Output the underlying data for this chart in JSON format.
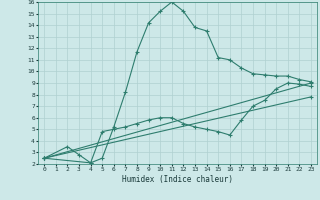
{
  "xlabel": "Humidex (Indice chaleur)",
  "xlim": [
    -0.5,
    23.5
  ],
  "ylim": [
    2,
    16
  ],
  "xticks": [
    0,
    1,
    2,
    3,
    4,
    5,
    6,
    7,
    8,
    9,
    10,
    11,
    12,
    13,
    14,
    15,
    16,
    17,
    18,
    19,
    20,
    21,
    22,
    23
  ],
  "yticks": [
    2,
    3,
    4,
    5,
    6,
    7,
    8,
    9,
    10,
    11,
    12,
    13,
    14,
    15,
    16
  ],
  "background_color": "#cde8e8",
  "line_color": "#2e7d6e",
  "grid_color": "#b0d0d0",
  "lines": [
    {
      "x": [
        0,
        2,
        3,
        4,
        5,
        6,
        7,
        8,
        9,
        10,
        11,
        12,
        13,
        14,
        15,
        16,
        17,
        18,
        19,
        20,
        21,
        22,
        23
      ],
      "y": [
        2.5,
        3.5,
        2.8,
        2.1,
        2.5,
        5.2,
        8.2,
        11.7,
        14.2,
        15.2,
        16.0,
        15.2,
        13.8,
        13.5,
        11.2,
        11.0,
        10.3,
        9.8,
        9.7,
        9.6,
        9.6,
        9.3,
        9.1
      ]
    },
    {
      "x": [
        0,
        4,
        5,
        6,
        7,
        8,
        9,
        10,
        11,
        12,
        13,
        14,
        15,
        16,
        17,
        18,
        19,
        20,
        21,
        22,
        23
      ],
      "y": [
        2.5,
        2.1,
        4.8,
        5.0,
        5.2,
        5.5,
        5.8,
        6.0,
        6.0,
        5.5,
        5.2,
        5.0,
        4.8,
        4.5,
        5.8,
        7.0,
        7.5,
        8.5,
        9.0,
        8.9,
        8.7
      ]
    },
    {
      "x": [
        0,
        23
      ],
      "y": [
        2.5,
        9.0
      ]
    },
    {
      "x": [
        0,
        23
      ],
      "y": [
        2.5,
        7.8
      ]
    }
  ]
}
